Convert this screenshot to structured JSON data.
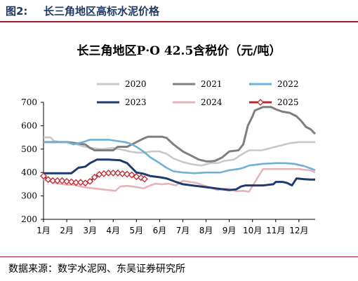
{
  "figure": {
    "label": "图2:",
    "title": "长三角地区高标水泥价格",
    "source": "数据来源：数字水泥网、东吴证券研究所"
  },
  "colors": {
    "brand_title": "#1f3864",
    "rule": "#a0182f"
  },
  "chart_data": {
    "type": "line",
    "title": "长三角地区P·O 42.5含税价（元/吨）",
    "xlabel": "",
    "ylabel": "",
    "x_ticks": [
      "1月",
      "2月",
      "3月",
      "4月",
      "5月",
      "6月",
      "7月",
      "8月",
      "9月",
      "10月",
      "11月",
      "12月"
    ],
    "x_range": [
      1,
      12.7
    ],
    "ylim": [
      200,
      700
    ],
    "y_ticks": [
      200,
      300,
      400,
      500,
      600,
      700
    ],
    "grid": false,
    "legend_position": "top",
    "series": [
      {
        "name": "2020",
        "color": "#c8c8c8",
        "marker": "none",
        "points": [
          [
            1.0,
            550
          ],
          [
            1.3,
            550
          ],
          [
            1.45,
            535
          ],
          [
            1.7,
            530
          ],
          [
            2.0,
            530
          ],
          [
            2.3,
            525
          ],
          [
            2.6,
            515
          ],
          [
            3.0,
            505
          ],
          [
            3.5,
            500
          ],
          [
            4.0,
            505
          ],
          [
            4.5,
            495
          ],
          [
            4.7,
            490
          ],
          [
            5.0,
            485
          ],
          [
            5.3,
            485
          ],
          [
            5.7,
            490
          ],
          [
            6.0,
            490
          ],
          [
            6.3,
            480
          ],
          [
            6.6,
            460
          ],
          [
            7.0,
            445
          ],
          [
            7.4,
            435
          ],
          [
            7.8,
            430
          ],
          [
            8.2,
            440
          ],
          [
            8.5,
            440
          ],
          [
            8.8,
            450
          ],
          [
            9.2,
            455
          ],
          [
            9.5,
            475
          ],
          [
            9.85,
            495
          ],
          [
            10.4,
            495
          ],
          [
            10.8,
            505
          ],
          [
            11.2,
            515
          ],
          [
            11.6,
            525
          ],
          [
            12.0,
            530
          ],
          [
            12.3,
            530
          ],
          [
            12.7,
            530
          ]
        ]
      },
      {
        "name": "2021",
        "color": "#7f7f7f",
        "marker": "none",
        "points": [
          [
            1.0,
            530
          ],
          [
            1.5,
            530
          ],
          [
            2.0,
            530
          ],
          [
            2.4,
            525
          ],
          [
            2.8,
            520
          ],
          [
            3.0,
            505
          ],
          [
            3.2,
            495
          ],
          [
            3.6,
            495
          ],
          [
            4.0,
            495
          ],
          [
            4.2,
            510
          ],
          [
            4.6,
            510
          ],
          [
            5.0,
            530
          ],
          [
            5.3,
            545
          ],
          [
            5.5,
            553
          ],
          [
            5.8,
            553
          ],
          [
            6.1,
            553
          ],
          [
            6.3,
            548
          ],
          [
            6.6,
            520
          ],
          [
            7.0,
            490
          ],
          [
            7.4,
            470
          ],
          [
            7.7,
            455
          ],
          [
            8.0,
            448
          ],
          [
            8.2,
            448
          ],
          [
            8.4,
            450
          ],
          [
            8.7,
            465
          ],
          [
            9.0,
            490
          ],
          [
            9.4,
            495
          ],
          [
            9.6,
            520
          ],
          [
            9.8,
            600
          ],
          [
            10.0,
            640
          ],
          [
            10.1,
            665
          ],
          [
            10.45,
            680
          ],
          [
            10.8,
            680
          ],
          [
            11.0,
            670
          ],
          [
            11.3,
            660
          ],
          [
            11.6,
            655
          ],
          [
            11.9,
            640
          ],
          [
            12.1,
            620
          ],
          [
            12.3,
            595
          ],
          [
            12.5,
            585
          ],
          [
            12.7,
            565
          ]
        ]
      },
      {
        "name": "2022",
        "color": "#6fb2d4",
        "marker": "none",
        "points": [
          [
            1.0,
            530
          ],
          [
            1.5,
            530
          ],
          [
            2.0,
            530
          ],
          [
            2.3,
            520
          ],
          [
            2.7,
            530
          ],
          [
            3.0,
            540
          ],
          [
            3.3,
            540
          ],
          [
            3.8,
            540
          ],
          [
            4.0,
            537
          ],
          [
            4.5,
            530
          ],
          [
            4.7,
            525
          ],
          [
            5.0,
            510
          ],
          [
            5.3,
            490
          ],
          [
            5.6,
            465
          ],
          [
            6.0,
            440
          ],
          [
            6.3,
            420
          ],
          [
            6.6,
            405
          ],
          [
            7.0,
            400
          ],
          [
            7.5,
            397
          ],
          [
            8.0,
            400
          ],
          [
            8.6,
            400
          ],
          [
            9.0,
            410
          ],
          [
            9.4,
            415
          ],
          [
            9.6,
            420
          ],
          [
            9.85,
            430
          ],
          [
            10.45,
            437
          ],
          [
            10.6,
            438
          ],
          [
            11.0,
            440
          ],
          [
            11.4,
            440
          ],
          [
            11.8,
            437
          ],
          [
            12.2,
            428
          ],
          [
            12.5,
            418
          ],
          [
            12.7,
            410
          ]
        ]
      },
      {
        "name": "2023",
        "color": "#1f3a6e",
        "marker": "none",
        "points": [
          [
            1.0,
            397
          ],
          [
            1.5,
            397
          ],
          [
            1.9,
            397
          ],
          [
            2.2,
            397
          ],
          [
            2.5,
            420
          ],
          [
            2.8,
            425
          ],
          [
            3.0,
            440
          ],
          [
            3.3,
            455
          ],
          [
            3.8,
            455
          ],
          [
            4.3,
            452
          ],
          [
            4.6,
            440
          ],
          [
            4.8,
            420
          ],
          [
            5.0,
            400
          ],
          [
            5.3,
            395
          ],
          [
            5.6,
            385
          ],
          [
            6.0,
            380
          ],
          [
            6.3,
            375
          ],
          [
            6.7,
            360
          ],
          [
            7.0,
            350
          ],
          [
            7.4,
            345
          ],
          [
            7.8,
            340
          ],
          [
            8.2,
            335
          ],
          [
            8.6,
            330
          ],
          [
            9.0,
            325
          ],
          [
            9.3,
            328
          ],
          [
            9.5,
            340
          ],
          [
            9.7,
            345
          ],
          [
            10.0,
            345
          ],
          [
            10.45,
            345
          ],
          [
            10.9,
            350
          ],
          [
            11.0,
            360
          ],
          [
            11.3,
            360
          ],
          [
            11.5,
            355
          ],
          [
            11.7,
            345
          ],
          [
            11.9,
            375
          ],
          [
            12.2,
            372
          ],
          [
            12.5,
            370
          ],
          [
            12.7,
            370
          ]
        ]
      },
      {
        "name": "2024",
        "color": "#e6b3b8",
        "marker": "none",
        "points": [
          [
            1.0,
            370
          ],
          [
            1.3,
            362
          ],
          [
            1.5,
            355
          ],
          [
            1.8,
            350
          ],
          [
            2.0,
            348
          ],
          [
            2.3,
            348
          ],
          [
            2.6,
            340
          ],
          [
            2.9,
            335
          ],
          [
            3.2,
            332
          ],
          [
            3.5,
            328
          ],
          [
            3.8,
            325
          ],
          [
            4.1,
            322
          ],
          [
            4.3,
            340
          ],
          [
            4.6,
            343
          ],
          [
            5.0,
            338
          ],
          [
            5.3,
            332
          ],
          [
            5.6,
            345
          ],
          [
            5.8,
            352
          ],
          [
            6.1,
            350
          ],
          [
            6.4,
            352
          ],
          [
            6.7,
            345
          ],
          [
            7.0,
            365
          ],
          [
            7.3,
            360
          ],
          [
            7.6,
            355
          ],
          [
            7.9,
            345
          ],
          [
            8.2,
            335
          ],
          [
            8.5,
            325
          ],
          [
            8.7,
            330
          ],
          [
            9.0,
            330
          ],
          [
            9.3,
            320
          ],
          [
            9.6,
            322
          ],
          [
            9.85,
            318
          ],
          [
            10.45,
            415
          ],
          [
            10.8,
            415
          ],
          [
            11.2,
            415
          ],
          [
            11.6,
            415
          ],
          [
            12.0,
            415
          ],
          [
            12.2,
            412
          ],
          [
            12.5,
            410
          ],
          [
            12.7,
            400
          ]
        ]
      },
      {
        "name": "2025",
        "color": "#c0262f",
        "marker": "diamond",
        "points": [
          [
            1.0,
            385
          ],
          [
            1.2,
            370
          ],
          [
            1.4,
            365
          ],
          [
            1.6,
            365
          ],
          [
            1.8,
            365
          ],
          [
            2.0,
            362
          ],
          [
            2.2,
            360
          ],
          [
            2.4,
            357
          ],
          [
            2.6,
            358
          ],
          [
            2.8,
            355
          ],
          [
            3.0,
            362
          ],
          [
            3.2,
            380
          ],
          [
            3.4,
            392
          ],
          [
            3.6,
            395
          ],
          [
            3.8,
            398
          ],
          [
            4.0,
            398
          ],
          [
            4.2,
            398
          ],
          [
            4.4,
            395
          ],
          [
            4.6,
            393
          ],
          [
            4.8,
            390
          ],
          [
            5.0,
            382
          ],
          [
            5.2,
            378
          ],
          [
            5.35,
            372
          ]
        ]
      }
    ]
  }
}
